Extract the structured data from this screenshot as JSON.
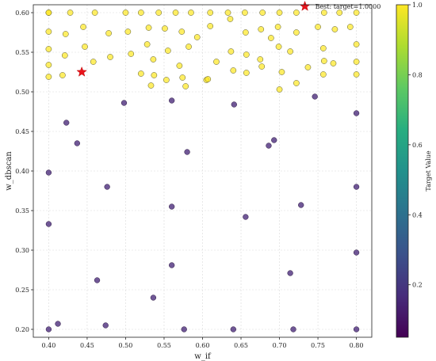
{
  "chart_data": {
    "type": "scatter",
    "xlabel": "w_if",
    "ylabel": "w_dbscan",
    "xlim": [
      0.38,
      0.82
    ],
    "ylim": [
      0.19,
      0.61
    ],
    "xticks": [
      0.4,
      0.45,
      0.5,
      0.55,
      0.6,
      0.65,
      0.7,
      0.75,
      0.8
    ],
    "yticks": [
      0.2,
      0.25,
      0.3,
      0.35,
      0.4,
      0.45,
      0.5,
      0.55,
      0.6
    ],
    "grid": true,
    "colorbar": {
      "label": "Target Value",
      "colormap": "viridis",
      "range": [
        0.05,
        1.0
      ],
      "ticks": [
        0.2,
        0.4,
        0.6,
        0.8,
        1.0
      ]
    },
    "best": {
      "x": 0.443,
      "y": 0.525,
      "marker": "red-star"
    },
    "annotation": {
      "text": "Best: target=1.0000",
      "x": 0.733,
      "y": 0.608
    },
    "points_high": {
      "target": 1.0,
      "color": "#fde725",
      "points": [
        [
          0.4,
          0.6
        ],
        [
          0.4,
          0.6
        ],
        [
          0.428,
          0.6
        ],
        [
          0.46,
          0.6
        ],
        [
          0.5,
          0.6
        ],
        [
          0.52,
          0.6
        ],
        [
          0.543,
          0.6
        ],
        [
          0.565,
          0.6
        ],
        [
          0.585,
          0.6
        ],
        [
          0.61,
          0.6
        ],
        [
          0.633,
          0.6
        ],
        [
          0.655,
          0.6
        ],
        [
          0.678,
          0.6
        ],
        [
          0.7,
          0.6
        ],
        [
          0.722,
          0.6
        ],
        [
          0.758,
          0.6
        ],
        [
          0.778,
          0.6
        ],
        [
          0.8,
          0.6
        ],
        [
          0.4,
          0.576
        ],
        [
          0.422,
          0.573
        ],
        [
          0.445,
          0.582
        ],
        [
          0.478,
          0.574
        ],
        [
          0.503,
          0.576
        ],
        [
          0.53,
          0.581
        ],
        [
          0.551,
          0.58
        ],
        [
          0.573,
          0.576
        ],
        [
          0.61,
          0.583
        ],
        [
          0.636,
          0.592
        ],
        [
          0.656,
          0.575
        ],
        [
          0.676,
          0.579
        ],
        [
          0.698,
          0.582
        ],
        [
          0.722,
          0.575
        ],
        [
          0.75,
          0.582
        ],
        [
          0.772,
          0.579
        ],
        [
          0.792,
          0.582
        ],
        [
          0.8,
          0.56
        ],
        [
          0.4,
          0.554
        ],
        [
          0.421,
          0.546
        ],
        [
          0.447,
          0.557
        ],
        [
          0.48,
          0.544
        ],
        [
          0.507,
          0.548
        ],
        [
          0.528,
          0.56
        ],
        [
          0.536,
          0.541
        ],
        [
          0.555,
          0.552
        ],
        [
          0.582,
          0.557
        ],
        [
          0.593,
          0.569
        ],
        [
          0.618,
          0.538
        ],
        [
          0.637,
          0.551
        ],
        [
          0.657,
          0.547
        ],
        [
          0.675,
          0.541
        ],
        [
          0.689,
          0.568
        ],
        [
          0.699,
          0.557
        ],
        [
          0.714,
          0.551
        ],
        [
          0.757,
          0.555
        ],
        [
          0.77,
          0.536
        ],
        [
          0.8,
          0.538
        ],
        [
          0.4,
          0.534
        ],
        [
          0.4,
          0.519
        ],
        [
          0.418,
          0.521
        ],
        [
          0.458,
          0.538
        ],
        [
          0.52,
          0.523
        ],
        [
          0.533,
          0.508
        ],
        [
          0.537,
          0.521
        ],
        [
          0.553,
          0.515
        ],
        [
          0.57,
          0.533
        ],
        [
          0.574,
          0.518
        ],
        [
          0.578,
          0.507
        ],
        [
          0.605,
          0.515
        ],
        [
          0.607,
          0.516
        ],
        [
          0.64,
          0.527
        ],
        [
          0.657,
          0.524
        ],
        [
          0.677,
          0.532
        ],
        [
          0.703,
          0.525
        ],
        [
          0.722,
          0.511
        ],
        [
          0.737,
          0.531
        ],
        [
          0.757,
          0.522
        ],
        [
          0.758,
          0.539
        ],
        [
          0.8,
          0.522
        ],
        [
          0.7,
          0.503
        ]
      ]
    },
    "points_low": {
      "target": 0.05,
      "color": "#482878",
      "points": [
        [
          0.423,
          0.461
        ],
        [
          0.437,
          0.435
        ],
        [
          0.4,
          0.398
        ],
        [
          0.4,
          0.333
        ],
        [
          0.476,
          0.38
        ],
        [
          0.498,
          0.486
        ],
        [
          0.56,
          0.489
        ],
        [
          0.58,
          0.424
        ],
        [
          0.56,
          0.355
        ],
        [
          0.56,
          0.281
        ],
        [
          0.536,
          0.24
        ],
        [
          0.463,
          0.262
        ],
        [
          0.474,
          0.205
        ],
        [
          0.4,
          0.2
        ],
        [
          0.412,
          0.207
        ],
        [
          0.576,
          0.2
        ],
        [
          0.641,
          0.484
        ],
        [
          0.686,
          0.432
        ],
        [
          0.693,
          0.439
        ],
        [
          0.656,
          0.342
        ],
        [
          0.728,
          0.357
        ],
        [
          0.714,
          0.271
        ],
        [
          0.746,
          0.494
        ],
        [
          0.8,
          0.473
        ],
        [
          0.8,
          0.38
        ],
        [
          0.8,
          0.297
        ],
        [
          0.64,
          0.2
        ],
        [
          0.718,
          0.2
        ],
        [
          0.8,
          0.2
        ]
      ]
    }
  }
}
